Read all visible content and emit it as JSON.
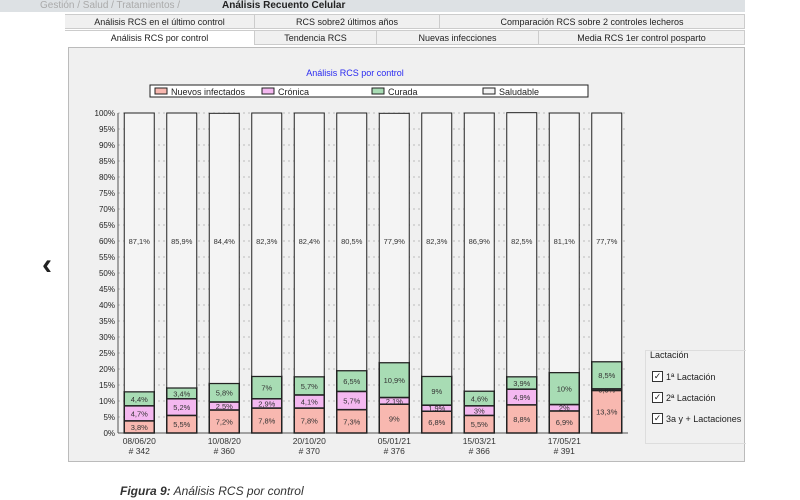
{
  "breadcrumb": {
    "prefix": "Gestión / Salud / Tratamientos /",
    "current": "Análisis Recuento Celular"
  },
  "tabs_row1": [
    "Análisis RCS en el último control",
    "RCS sobre2 últimos años",
    "Comparación RCS sobre 2 controles lecheros"
  ],
  "tabs_row2": [
    "Análisis RCS por control",
    "Tendencia RCS",
    "Nuevas infecciones",
    "Media RCS 1er control posparto"
  ],
  "lactation": {
    "title": "Lactación",
    "options": [
      {
        "label": "1ª Lactación",
        "checked": true
      },
      {
        "label": "2ª Lactación",
        "checked": true
      },
      {
        "label": "3a y + Lactaciones",
        "checked": true
      }
    ]
  },
  "caption": {
    "label": "Figura 9:",
    "text": "Análisis RCS por control"
  },
  "chart_data": {
    "type": "bar",
    "stacked": true,
    "title": "Análisis RCS por control",
    "ylim": [
      0,
      100
    ],
    "yticks": [
      "0%",
      "5%",
      "10%",
      "15%",
      "20%",
      "25%",
      "30%",
      "35%",
      "40%",
      "45%",
      "50%",
      "55%",
      "60%",
      "65%",
      "70%",
      "75%",
      "80%",
      "85%",
      "90%",
      "95%",
      "100%"
    ],
    "xlabels": [
      [
        "08/06/20",
        "# 342"
      ],
      null,
      [
        "10/08/20",
        "# 360"
      ],
      null,
      [
        "20/10/20",
        "# 370"
      ],
      null,
      [
        "05/01/21",
        "# 376"
      ],
      null,
      [
        "15/03/21",
        "# 366"
      ],
      null,
      [
        "17/05/21",
        "# 391"
      ],
      null
    ],
    "legend": "top",
    "series": [
      {
        "name": "Nuevos infectados",
        "color": "#f8b8b0",
        "values": [
          3.8,
          5.5,
          7.2,
          7.8,
          7.8,
          7.3,
          9,
          6.8,
          5.5,
          8.8,
          6.9,
          13.3
        ],
        "labels": [
          "3,8%",
          "5,5%",
          "7,2%",
          "7,8%",
          "7,8%",
          "7,3%",
          "9%",
          "6,8%",
          "5,5%",
          "8,8%",
          "6,9%",
          "13,3%"
        ]
      },
      {
        "name": "Crónica",
        "color": "#f4b8f0",
        "values": [
          4.7,
          5.2,
          2.5,
          2.9,
          4.1,
          5.7,
          2.1,
          1.9,
          3,
          4.9,
          2,
          0.5
        ],
        "labels": [
          "4,7%",
          "5,2%",
          "2,5%",
          "2,9%",
          "4,1%",
          "5,7%",
          "2,1%",
          "1,9%",
          "3%",
          "4,9%",
          "2%",
          "0,5%"
        ]
      },
      {
        "name": "Curada",
        "color": "#a8dcb4",
        "values": [
          4.4,
          3.4,
          5.8,
          7,
          5.7,
          6.5,
          10.9,
          9,
          4.6,
          3.9,
          10,
          8.5
        ],
        "labels": [
          "4,4%",
          "3,4%",
          "5,8%",
          "7%",
          "5,7%",
          "6,5%",
          "10,9%",
          "9%",
          "4,6%",
          "3,9%",
          "10%",
          "8,5%"
        ]
      },
      {
        "name": "Saludable",
        "color": "#f4f4f4",
        "values": [
          87.1,
          85.9,
          84.4,
          82.3,
          82.4,
          80.5,
          77.9,
          82.3,
          86.9,
          82.5,
          81.1,
          77.7
        ],
        "labels": [
          "87,1%",
          "85,9%",
          "84,4%",
          "82,3%",
          "82,4%",
          "80,5%",
          "77,9%",
          "82,3%",
          "86,9%",
          "82,5%",
          "81,1%",
          "77,7%"
        ]
      }
    ]
  }
}
